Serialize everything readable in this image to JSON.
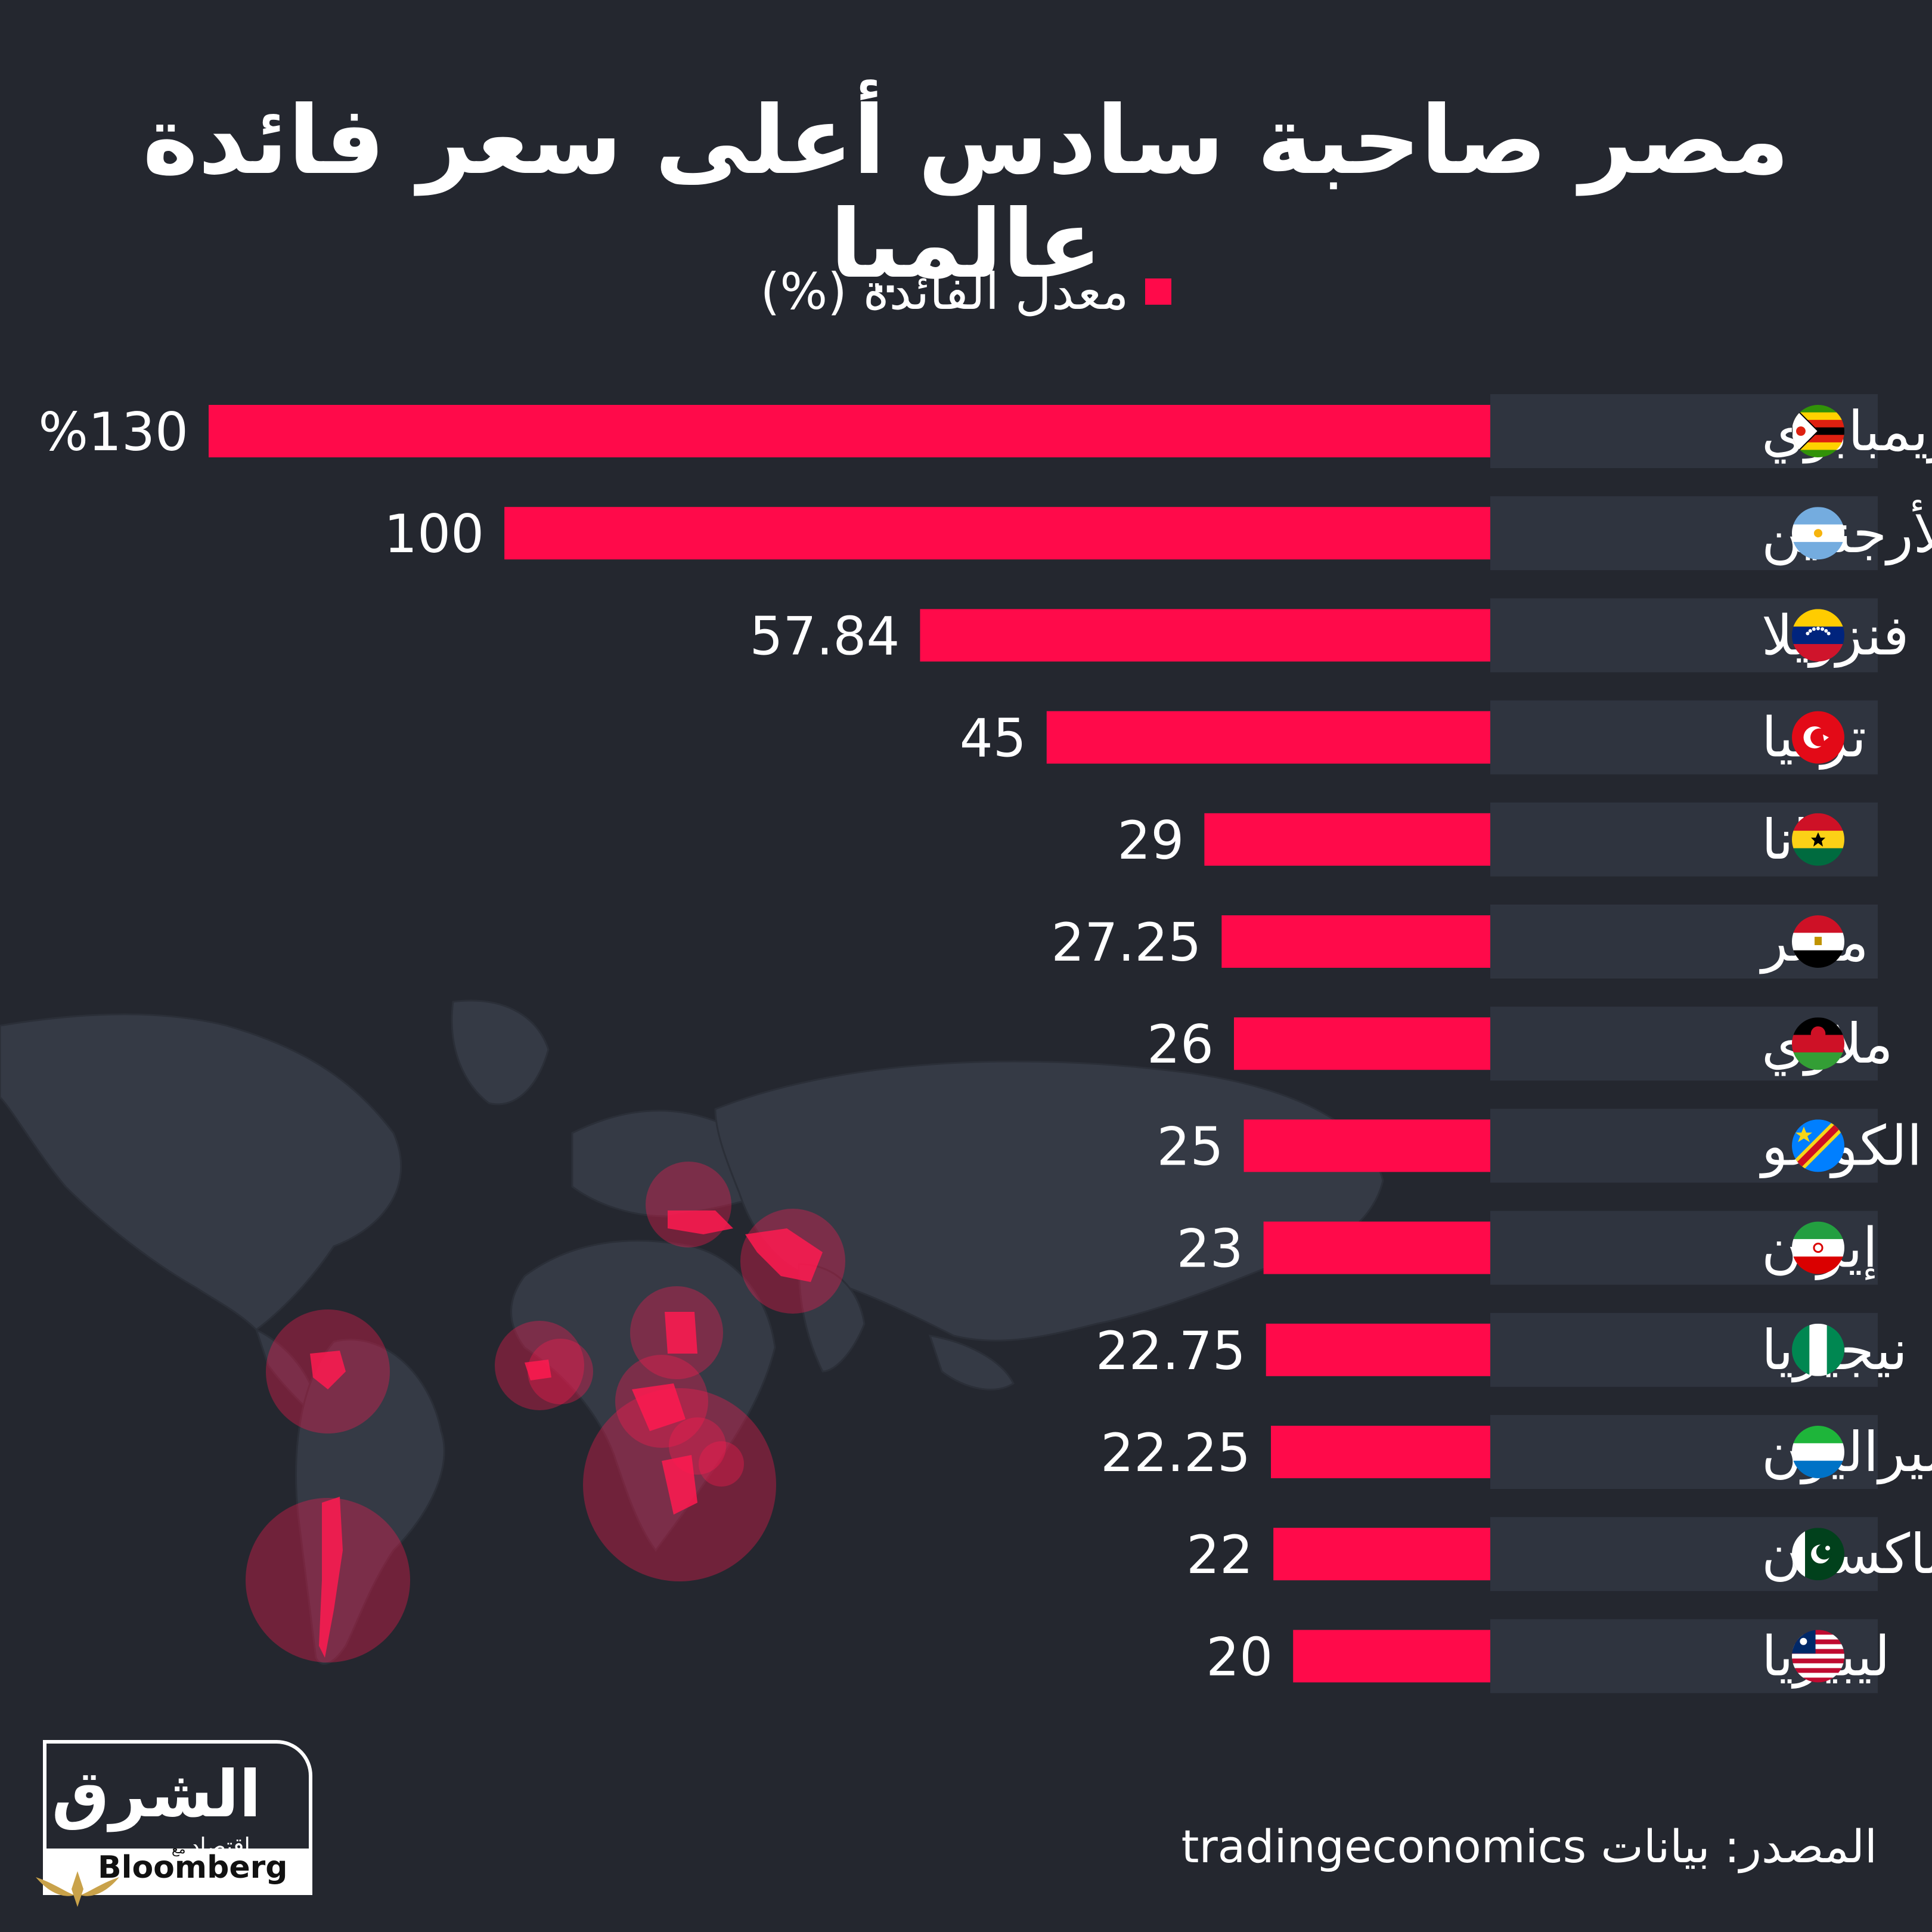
{
  "title": "مصر صاحبة سادس أعلى سعر فائدة عالميا",
  "legend": {
    "label": "معدل الفائدة (%)",
    "color": "#ff0a4a"
  },
  "source": "المصدر: بيانات tradingeconomics",
  "logo": {
    "main": "الشرق",
    "sub": "اقتصاد",
    "with": "مع",
    "partner": "Bloomberg"
  },
  "colors": {
    "background": "#24272f",
    "bar": "#ff0a4a",
    "row_band": "#2f343f",
    "map_land": "#363b46",
    "map_highlight": "#ff1a50"
  },
  "chart_data": {
    "type": "bar",
    "orientation": "horizontal",
    "series": [
      {
        "name": "معدل الفائدة (%)"
      }
    ],
    "categories": [
      "زيمبابوي",
      "الأرجنتين",
      "فنزويلا",
      "تركيا",
      "غانا",
      "مصر",
      "ملاوي",
      "الكونغو",
      "إيران",
      "نيجيريا",
      "سيراليون",
      "باكستان",
      "ليبيريا"
    ],
    "values": [
      130,
      100,
      57.84,
      45,
      29,
      27.25,
      26,
      25,
      23,
      22.75,
      22.25,
      22,
      20
    ],
    "value_labels": [
      "%130",
      "100",
      "57.84",
      "45",
      "29",
      "27.25",
      "26",
      "25",
      "23",
      "22.75",
      "22.25",
      "22",
      "20"
    ],
    "flags": [
      "zimbabwe-flag",
      "argentina-flag",
      "venezuela-flag",
      "turkey-flag",
      "ghana-flag",
      "egypt-flag",
      "malawi-flag",
      "drc-flag",
      "iran-flag",
      "nigeria-flag",
      "sierra-leone-flag",
      "pakistan-flag",
      "liberia-flag"
    ],
    "xlim": [
      0,
      130
    ]
  }
}
